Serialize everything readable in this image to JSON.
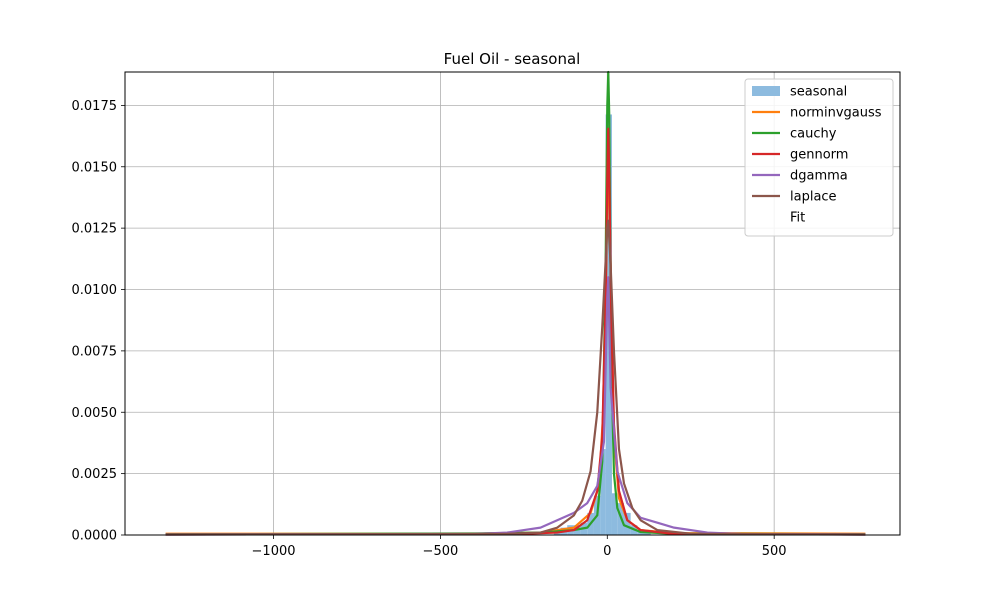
{
  "chart_data": {
    "type": "histogram-with-fit-lines",
    "title": "Fuel Oil - seasonal",
    "xlabel": "",
    "ylabel": "",
    "xlim": [
      -1445,
      877
    ],
    "ylim": [
      0,
      0.01886
    ],
    "grid": true,
    "legend_position": "top-right",
    "x_ticks": [
      -1000,
      -500,
      0,
      500
    ],
    "x_tick_labels": [
      "−1000",
      "−500",
      "0",
      "500"
    ],
    "y_ticks": [
      0.0,
      0.0025,
      0.005,
      0.0075,
      0.01,
      0.0125,
      0.015,
      0.0175
    ],
    "y_tick_labels": [
      "0.0000",
      "0.0025",
      "0.0050",
      "0.0075",
      "0.0100",
      "0.0125",
      "0.0150",
      "0.0175"
    ],
    "histogram": {
      "name": "seasonal",
      "color": "#8dbbdf",
      "bins": [
        {
          "x0": -160,
          "x1": -140,
          "value": 0.0002
        },
        {
          "x0": -140,
          "x1": -120,
          "value": 0.0003
        },
        {
          "x0": -120,
          "x1": -100,
          "value": 0.0004
        },
        {
          "x0": -100,
          "x1": -80,
          "value": 0.0004
        },
        {
          "x0": -80,
          "x1": -60,
          "value": 0.0005
        },
        {
          "x0": -60,
          "x1": -40,
          "value": 0.0009
        },
        {
          "x0": -40,
          "x1": -20,
          "value": 0.0016
        },
        {
          "x0": -20,
          "x1": -5,
          "value": 0.0035
        },
        {
          "x0": -5,
          "x1": 14,
          "value": 0.01713
        },
        {
          "x0": 14,
          "x1": 30,
          "value": 0.0017
        },
        {
          "x0": 30,
          "x1": 50,
          "value": 0.0013
        },
        {
          "x0": 50,
          "x1": 70,
          "value": 0.0009
        },
        {
          "x0": 70,
          "x1": 90,
          "value": 0.0004
        },
        {
          "x0": 90,
          "x1": 110,
          "value": 0.0002
        },
        {
          "x0": 110,
          "x1": 130,
          "value": 0.0001
        }
      ]
    },
    "series": [
      {
        "name": "norminvgauss",
        "color": "#ff7f0e",
        "points": [
          [
            -1320,
            5e-05
          ],
          [
            -400,
            5e-05
          ],
          [
            -200,
            0.0001
          ],
          [
            -100,
            0.0003
          ],
          [
            -50,
            0.0009
          ],
          [
            -25,
            0.002
          ],
          [
            -10,
            0.0055
          ],
          [
            0,
            0.0135
          ],
          [
            5,
            0.0145
          ],
          [
            10,
            0.011
          ],
          [
            20,
            0.004
          ],
          [
            35,
            0.0015
          ],
          [
            60,
            0.0006
          ],
          [
            100,
            0.0002
          ],
          [
            200,
            8e-05
          ],
          [
            770,
            5e-05
          ]
        ]
      },
      {
        "name": "cauchy",
        "color": "#2ca02c",
        "points": [
          [
            -1320,
            3e-05
          ],
          [
            -400,
            6e-05
          ],
          [
            -200,
            0.0001
          ],
          [
            -100,
            0.0002
          ],
          [
            -60,
            0.0003
          ],
          [
            -30,
            0.0008
          ],
          [
            -15,
            0.003
          ],
          [
            -5,
            0.011
          ],
          [
            0,
            0.0175
          ],
          [
            3,
            0.01886
          ],
          [
            6,
            0.017
          ],
          [
            12,
            0.007
          ],
          [
            20,
            0.0025
          ],
          [
            30,
            0.0011
          ],
          [
            50,
            0.0004
          ],
          [
            100,
            0.00012
          ],
          [
            200,
            5e-05
          ],
          [
            770,
            3e-05
          ]
        ]
      },
      {
        "name": "gennorm",
        "color": "#d62728",
        "points": [
          [
            -1320,
            2e-05
          ],
          [
            -300,
            3e-05
          ],
          [
            -150,
            0.0001
          ],
          [
            -100,
            0.0002
          ],
          [
            -60,
            0.0006
          ],
          [
            -30,
            0.0018
          ],
          [
            -15,
            0.004
          ],
          [
            -5,
            0.0095
          ],
          [
            0,
            0.0145
          ],
          [
            3,
            0.01655
          ],
          [
            6,
            0.0145
          ],
          [
            12,
            0.009
          ],
          [
            20,
            0.0045
          ],
          [
            35,
            0.0018
          ],
          [
            60,
            0.0006
          ],
          [
            100,
            0.0002
          ],
          [
            200,
            4e-05
          ],
          [
            770,
            2e-05
          ]
        ]
      },
      {
        "name": "dgamma",
        "color": "#9467bd",
        "points": [
          [
            -1320,
            2e-05
          ],
          [
            -400,
            4e-05
          ],
          [
            -300,
            0.0001
          ],
          [
            -200,
            0.0003
          ],
          [
            -150,
            0.0006
          ],
          [
            -100,
            0.0009
          ],
          [
            -60,
            0.0013
          ],
          [
            -30,
            0.002
          ],
          [
            -10,
            0.0038
          ],
          [
            0,
            0.0097
          ],
          [
            3,
            0.0105
          ],
          [
            10,
            0.006
          ],
          [
            30,
            0.0026
          ],
          [
            60,
            0.0013
          ],
          [
            100,
            0.0007
          ],
          [
            150,
            0.0005
          ],
          [
            200,
            0.0003
          ],
          [
            300,
            0.0001
          ],
          [
            400,
            4e-05
          ],
          [
            770,
            2e-05
          ]
        ]
      },
      {
        "name": "laplace",
        "color": "#8c564b",
        "points": [
          [
            -1320,
            2e-05
          ],
          [
            -300,
            5e-05
          ],
          [
            -200,
            0.0001
          ],
          [
            -150,
            0.0003
          ],
          [
            -100,
            0.0008
          ],
          [
            -75,
            0.0014
          ],
          [
            -50,
            0.0026
          ],
          [
            -30,
            0.005
          ],
          [
            -15,
            0.0085
          ],
          [
            0,
            0.0125
          ],
          [
            3,
            0.0128
          ],
          [
            10,
            0.011
          ],
          [
            20,
            0.0075
          ],
          [
            35,
            0.0035
          ],
          [
            50,
            0.0021
          ],
          [
            75,
            0.0011
          ],
          [
            100,
            0.0006
          ],
          [
            150,
            0.0002
          ],
          [
            250,
            5e-05
          ],
          [
            770,
            2e-05
          ]
        ]
      }
    ],
    "legend_entries": [
      {
        "label": "seasonal",
        "kind": "patch",
        "color": "#8dbbdf"
      },
      {
        "label": "norminvgauss",
        "kind": "line",
        "color": "#ff7f0e"
      },
      {
        "label": "cauchy",
        "kind": "line",
        "color": "#2ca02c"
      },
      {
        "label": "gennorm",
        "kind": "line",
        "color": "#d62728"
      },
      {
        "label": "dgamma",
        "kind": "line",
        "color": "#9467bd"
      },
      {
        "label": "laplace",
        "kind": "line",
        "color": "#8c564b"
      },
      {
        "label": "Fit",
        "kind": "none",
        "color": "#ffffff"
      }
    ]
  }
}
